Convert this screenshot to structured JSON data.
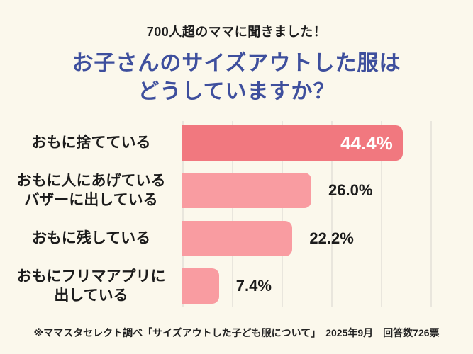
{
  "header": {
    "kicker": "700人超のママに聞きました！",
    "title_line1": "お子さんのサイズアウトした服は",
    "title_line2": "どうしていますか？"
  },
  "footer": {
    "source": "※ママスタセレクト調べ「サイズアウトした子ども服について」　2025年9月　回答数726票"
  },
  "colors": {
    "background": "#FBF8EC",
    "title_blue": "#3E4F9D",
    "text_black": "#1C1C1C",
    "gridline": "#E9E6DD",
    "value_inside": "#FFFFFF",
    "footer_text": "#222222",
    "bar_primary": "#F1787F",
    "bar_secondary": "#F99CA1"
  },
  "chart_data": {
    "type": "bar",
    "orientation": "horizontal",
    "title": "お子さんのサイズアウトした服はどうしていますか？",
    "subtitle": "700人超のママに聞きました！",
    "categories": [
      "おもに捨てている",
      "おもに人にあげている\nバザーに出している",
      "おもに残している",
      "おもにフリマアプリに\n出している"
    ],
    "values": [
      44.4,
      26.0,
      22.2,
      7.4
    ],
    "value_labels": [
      "44.4%",
      "26.0%",
      "22.2%",
      "7.4%"
    ],
    "unit": "%",
    "xlim": [
      0,
      58.5
    ],
    "gridlines_percent": [
      0,
      10,
      20,
      30,
      40,
      50
    ],
    "grid": true,
    "legend": false,
    "bar_colors": [
      "#F1787F",
      "#F99CA1",
      "#F99CA1",
      "#F99CA1"
    ],
    "value_label_placement": [
      "inside",
      "outside",
      "outside",
      "outside"
    ],
    "source_note": "※ママスタセレクト調べ「サイズアウトした子ども服について」　2025年9月　回答数726票"
  }
}
